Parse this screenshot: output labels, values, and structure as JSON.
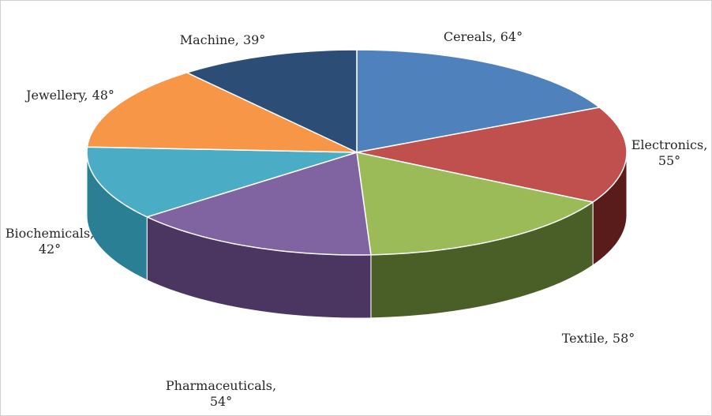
{
  "chart_data": {
    "type": "pie",
    "unit": "degrees",
    "slices": [
      {
        "name": "Cereals",
        "value": 64,
        "label_lines": [
          "Cereals, 64°"
        ],
        "color": "#4f81bd",
        "side_color": "#2f5478"
      },
      {
        "name": "Electronics",
        "value": 55,
        "label_lines": [
          "Electronics,",
          "55°"
        ],
        "color": "#c0504d",
        "side_color": "#5a1c1b"
      },
      {
        "name": "Textile",
        "value": 58,
        "label_lines": [
          "Textile, 58°"
        ],
        "color": "#9bbb59",
        "side_color": "#4a5e28"
      },
      {
        "name": "Pharmaceuticals",
        "value": 54,
        "label_lines": [
          "Pharmaceuticals,",
          "54°"
        ],
        "color": "#8064a2",
        "side_color": "#4a3661"
      },
      {
        "name": "Biochemicals",
        "value": 42,
        "label_lines": [
          "Biochemicals,",
          "42°"
        ],
        "color": "#4bacc6",
        "side_color": "#2b7f95"
      },
      {
        "name": "Jewellery",
        "value": 48,
        "label_lines": [
          "Jewellery, 48°"
        ],
        "color": "#f79646",
        "side_color": "#a85f1e"
      },
      {
        "name": "Machine",
        "value": 39,
        "label_lines": [
          "Machine, 39°"
        ],
        "color": "#2c4d75",
        "side_color": "#1a2f4a"
      }
    ],
    "start_angle_deg": 0,
    "direction": "clockwise",
    "style": "3d-exploded-none",
    "legend": "none"
  }
}
